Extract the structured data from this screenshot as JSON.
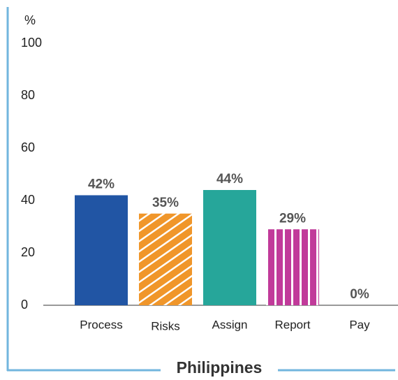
{
  "chart_data": {
    "type": "bar",
    "title": "Philippines",
    "y_label": "%",
    "categories": [
      "Process",
      "Risks",
      "Assign",
      "Report",
      "Pay"
    ],
    "values": [
      42,
      35,
      44,
      29,
      0
    ],
    "value_labels": [
      "42%",
      "35%",
      "44%",
      "29%",
      "0%"
    ],
    "colors": [
      "#2155a4",
      "#f0962a",
      "#26a69a",
      "#c13a9a",
      "#999999"
    ],
    "hatches": [
      null,
      "diagonal",
      null,
      "vertical",
      null
    ],
    "ylim": [
      0,
      100
    ],
    "yticks": [
      0,
      20,
      40,
      60,
      80,
      100
    ],
    "grid": false
  }
}
